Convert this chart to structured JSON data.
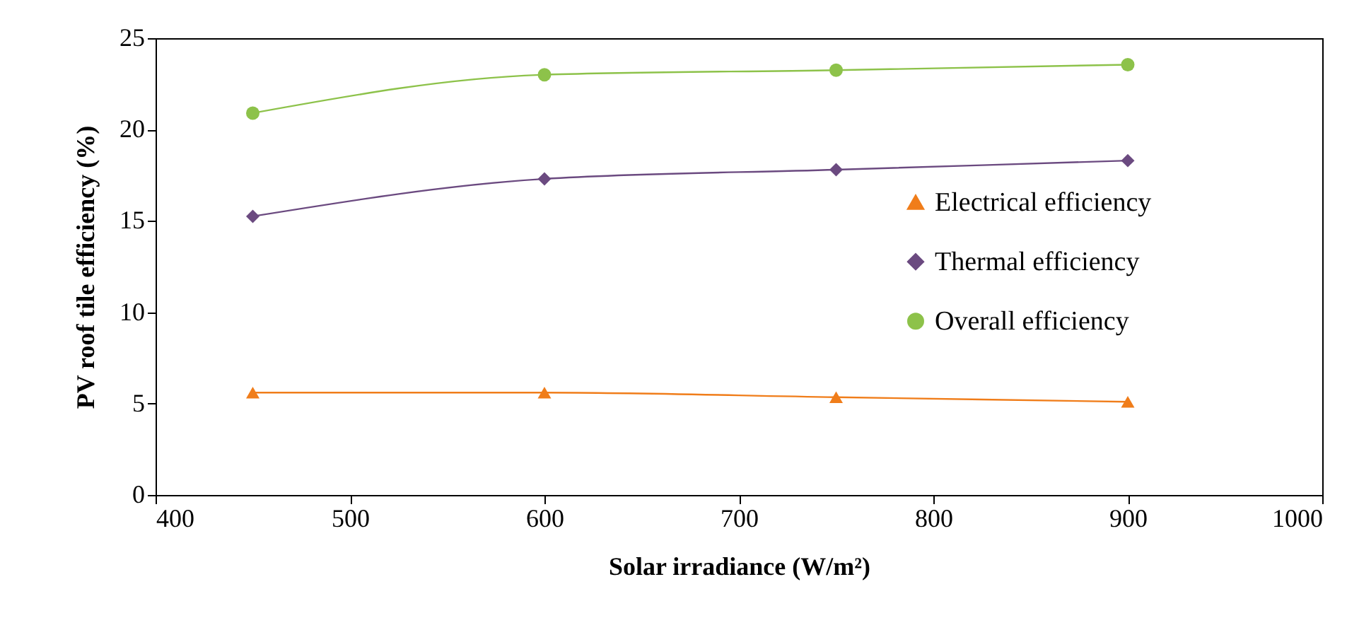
{
  "chart_data": {
    "type": "line",
    "xlabel": "Solar irradiance (W/m²)",
    "ylabel": "PV roof tile efficiency (%)",
    "x": [
      450,
      600,
      750,
      900
    ],
    "series": [
      {
        "name": "Electrical efficiency",
        "color": "#f07d1a",
        "marker": "triangle",
        "values": [
          5.6,
          5.6,
          5.35,
          5.1
        ]
      },
      {
        "name": "Thermal efficiency",
        "color": "#6b4a80",
        "marker": "diamond",
        "values": [
          15.25,
          17.3,
          17.8,
          18.3
        ]
      },
      {
        "name": "Overall efficiency",
        "color": "#8dc24a",
        "marker": "circle",
        "values": [
          20.9,
          23.0,
          23.25,
          23.55
        ]
      }
    ],
    "xlim": [
      400,
      1000
    ],
    "xticks": [
      400,
      500,
      600,
      700,
      800,
      900,
      1000
    ],
    "ylim": [
      0,
      25
    ],
    "yticks": [
      0,
      5,
      10,
      15,
      20,
      25
    ],
    "legend": "right",
    "line_style": "solid"
  }
}
